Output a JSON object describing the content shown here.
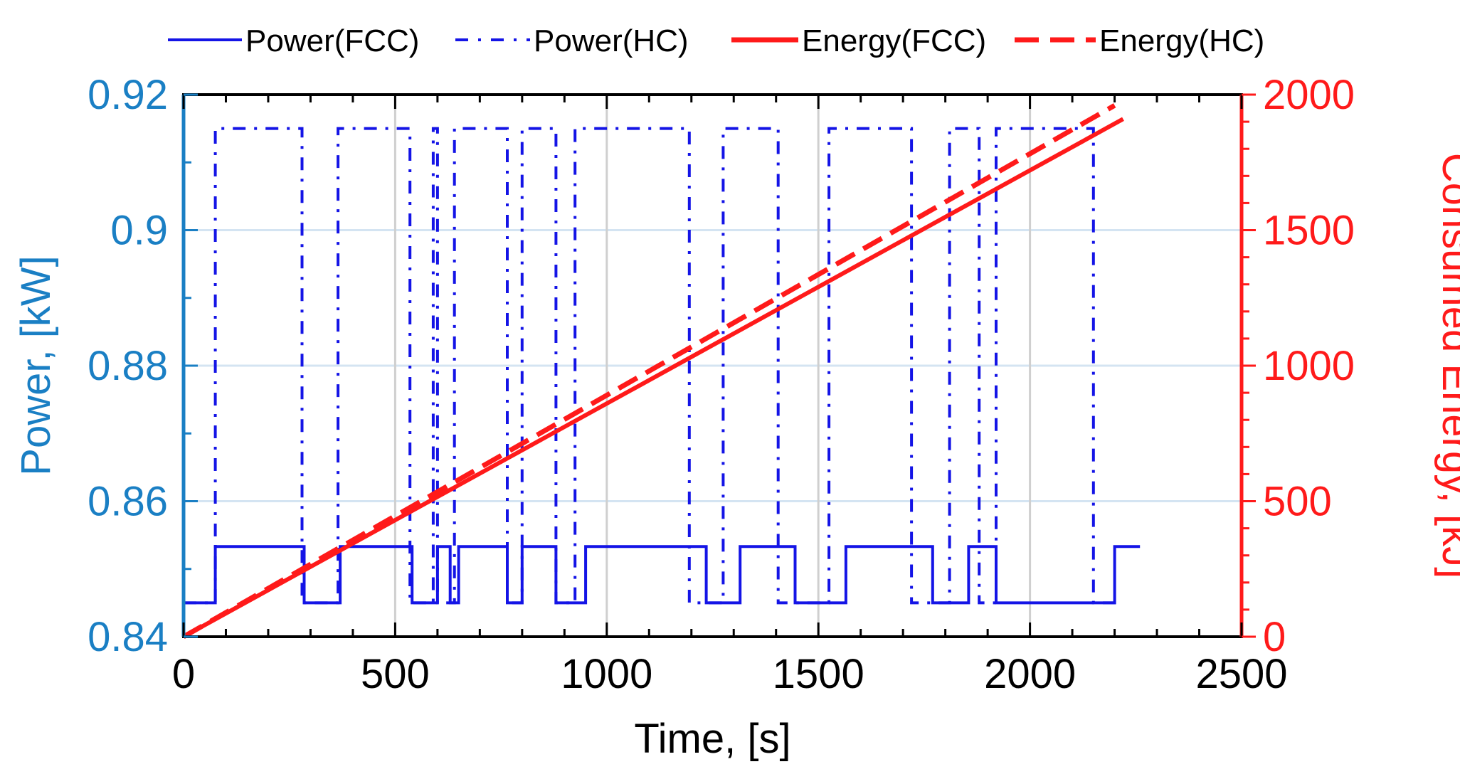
{
  "chart_data": {
    "type": "line",
    "title": "",
    "xlabel": "Time, [s]",
    "ylabel_left": "Power, [kW]",
    "ylabel_right": "Consumed Energy, [kJ]",
    "xlim": [
      0,
      2500
    ],
    "ylim_left": [
      0.84,
      0.92
    ],
    "ylim_right": [
      0,
      2000
    ],
    "x_ticks": [
      0,
      500,
      1000,
      1500,
      2000,
      2500
    ],
    "x_tick_labels": [
      "0",
      "500",
      "1000",
      "1500",
      "2000",
      "2500"
    ],
    "y_left_ticks": [
      0.84,
      0.86,
      0.88,
      0.9,
      0.92
    ],
    "y_left_tick_labels": [
      "0.84",
      "0.86",
      "0.88",
      "0.9",
      "0.92"
    ],
    "y_right_ticks": [
      0,
      500,
      1000,
      1500,
      2000
    ],
    "y_right_tick_labels": [
      "0",
      "500",
      "1000",
      "1500",
      "2000"
    ],
    "grid": true,
    "legend_position": "top",
    "series": [
      {
        "name": "Power(FCC)",
        "axis": "left",
        "style": "solid",
        "color": "#1414e6",
        "x": [
          0,
          75,
          75,
          285,
          285,
          370,
          370,
          540,
          540,
          600,
          600,
          630,
          630,
          650,
          650,
          765,
          765,
          800,
          800,
          880,
          880,
          950,
          950,
          1235,
          1235,
          1315,
          1315,
          1445,
          1445,
          1565,
          1565,
          1770,
          1770,
          1855,
          1855,
          1920,
          1920,
          2200,
          2200,
          2260
        ],
        "y": [
          0.845,
          0.845,
          0.8533,
          0.8533,
          0.845,
          0.845,
          0.8533,
          0.8533,
          0.845,
          0.845,
          0.8533,
          0.8533,
          0.845,
          0.845,
          0.8533,
          0.8533,
          0.845,
          0.845,
          0.8533,
          0.8533,
          0.845,
          0.845,
          0.8533,
          0.8533,
          0.845,
          0.845,
          0.8533,
          0.8533,
          0.845,
          0.845,
          0.8533,
          0.8533,
          0.845,
          0.845,
          0.8533,
          0.8533,
          0.845,
          0.845,
          0.8533,
          0.8533
        ]
      },
      {
        "name": "Power(HC)",
        "axis": "left",
        "style": "dashdot",
        "color": "#1414e6",
        "x": [
          0,
          75,
          75,
          280,
          280,
          365,
          365,
          535,
          535,
          590,
          590,
          600,
          600,
          640,
          640,
          765,
          765,
          800,
          800,
          880,
          880,
          925,
          925,
          1195,
          1195,
          1275,
          1275,
          1405,
          1405,
          1525,
          1525,
          1720,
          1720,
          1810,
          1810,
          1880,
          1880,
          1920,
          1920,
          2150,
          2150,
          2215
        ],
        "y": [
          0.845,
          0.845,
          0.915,
          0.915,
          0.845,
          0.845,
          0.915,
          0.915,
          0.845,
          0.845,
          0.915,
          0.915,
          0.845,
          0.845,
          0.915,
          0.915,
          0.845,
          0.845,
          0.915,
          0.915,
          0.845,
          0.845,
          0.915,
          0.915,
          0.845,
          0.845,
          0.915,
          0.915,
          0.845,
          0.845,
          0.915,
          0.915,
          0.845,
          0.845,
          0.915,
          0.915,
          0.845,
          0.845,
          0.915,
          0.915,
          0.845,
          0.845
        ]
      },
      {
        "name": "Energy(FCC)",
        "axis": "right",
        "style": "solid",
        "color": "#ff1a1a",
        "x": [
          0,
          2220
        ],
        "y": [
          0,
          1910
        ]
      },
      {
        "name": "Energy(HC)",
        "axis": "right",
        "style": "dashed",
        "color": "#ff1a1a",
        "x": [
          0,
          2200
        ],
        "y": [
          0,
          1960
        ]
      }
    ],
    "colors": {
      "left_axis": "#1a7fc4",
      "right_axis": "#ff1a1a",
      "power": "#1414e6",
      "energy": "#ff1a1a",
      "grid_h": "#d4e4f2",
      "grid_v": "#cfcfcf"
    }
  }
}
